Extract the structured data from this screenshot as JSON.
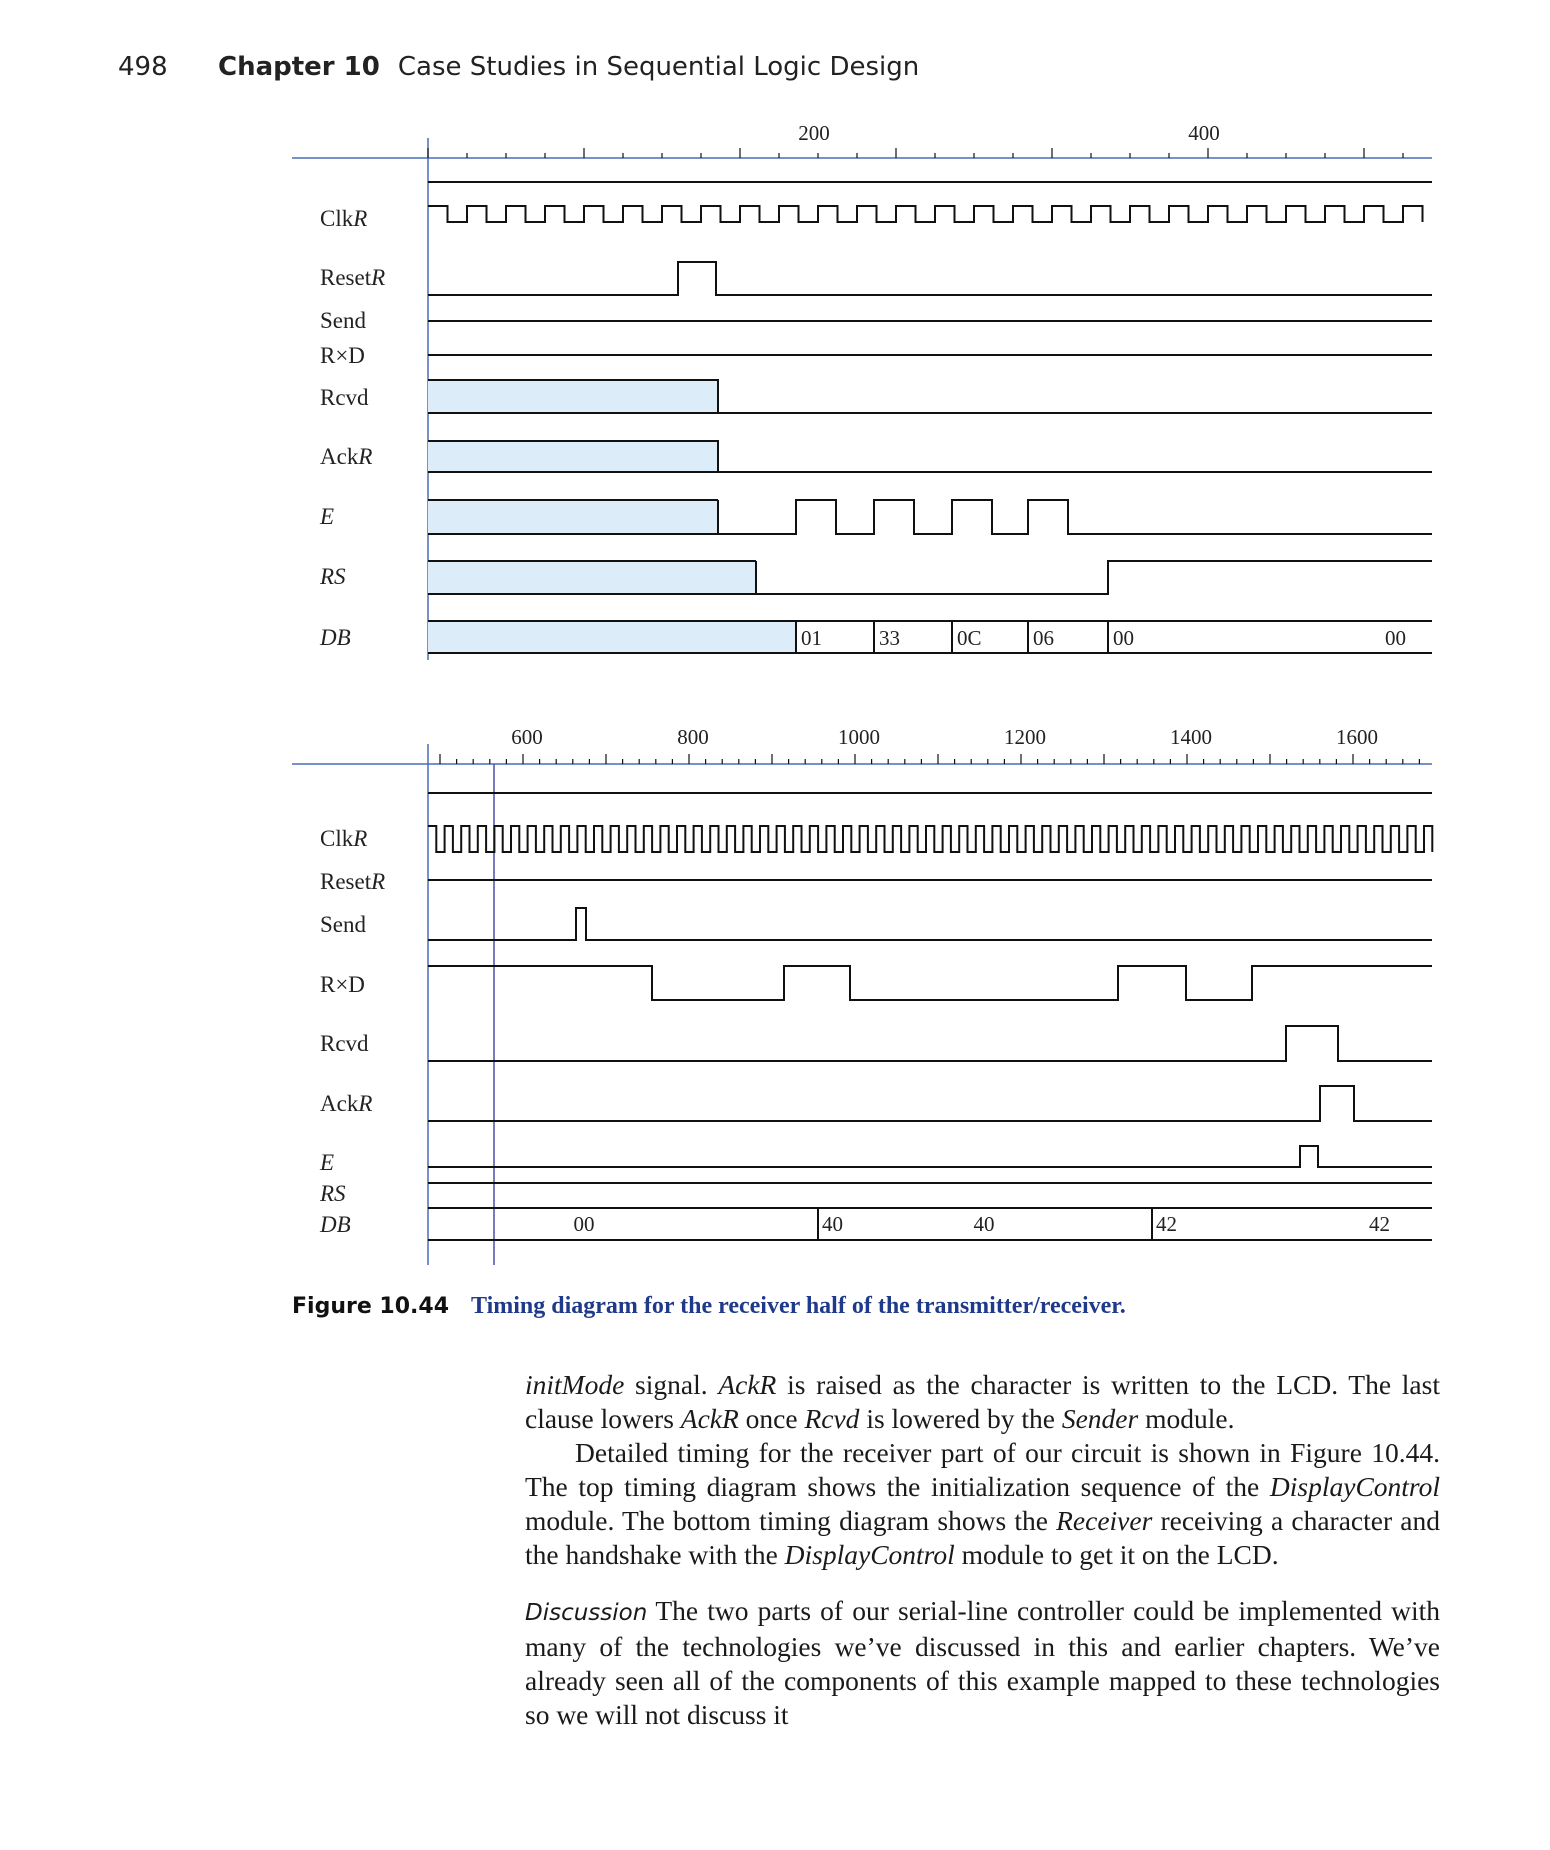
{
  "header": {
    "page_number": "498",
    "chapter": "Chapter 10",
    "title": "Case Studies in Sequential Logic Design"
  },
  "colors": {
    "shade": "#dcecf8",
    "axis_blue": "#4a6fb5",
    "caption_blue": "#1f3a8a",
    "trace": "#111111"
  },
  "diagram_top": {
    "tick_labels": [
      "200",
      "400"
    ],
    "signals": [
      {
        "name": "Clk",
        "suffix": "R",
        "italic": false
      },
      {
        "name": "Reset",
        "suffix": "R",
        "italic": false
      },
      {
        "name": "Send",
        "suffix": "",
        "italic": false
      },
      {
        "name": "R×D",
        "suffix": "",
        "italic": false
      },
      {
        "name": "Rcvd",
        "suffix": "",
        "italic": false
      },
      {
        "name": "Ack",
        "suffix": "R",
        "italic": false
      },
      {
        "name": "E",
        "suffix": "",
        "italic": true
      },
      {
        "name": "RS",
        "suffix": "",
        "italic": true
      },
      {
        "name": "DB",
        "suffix": "",
        "italic": true
      }
    ],
    "db_values": [
      "01",
      "33",
      "0C",
      "06",
      "00",
      "00"
    ]
  },
  "diagram_bottom": {
    "tick_labels": [
      "600",
      "800",
      "1000",
      "1200",
      "1400",
      "1600"
    ],
    "signals": [
      {
        "name": "Clk",
        "suffix": "R",
        "italic": false
      },
      {
        "name": "Reset",
        "suffix": "R",
        "italic": false
      },
      {
        "name": "Send",
        "suffix": "",
        "italic": false
      },
      {
        "name": "R×D",
        "suffix": "",
        "italic": false
      },
      {
        "name": "Rcvd",
        "suffix": "",
        "italic": false
      },
      {
        "name": "Ack",
        "suffix": "R",
        "italic": false
      },
      {
        "name": "E",
        "suffix": "",
        "italic": true
      },
      {
        "name": "RS",
        "suffix": "",
        "italic": true
      },
      {
        "name": "DB",
        "suffix": "",
        "italic": true
      }
    ],
    "db_values": [
      "00",
      "40",
      "40",
      "42",
      "42"
    ]
  },
  "caption": {
    "number": "Figure 10.44",
    "text": "Timing diagram for the receiver half of the transmitter/receiver."
  },
  "body": {
    "p1_a": "initMode",
    "p1_b": " signal. ",
    "p1_c": "AckR",
    "p1_d": " is raised as the character is written to the LCD. The last clause lowers ",
    "p1_e": "AckR",
    "p1_f": " once ",
    "p1_g": "Rcvd",
    "p1_h": " is lowered by the ",
    "p1_i": "Sender",
    "p1_j": " module.",
    "p2_a": "Detailed timing for the receiver part of our circuit is shown in Figure 10.44. The top timing diagram shows the initialization sequence of the ",
    "p2_b": "DisplayControl",
    "p2_c": " module. The bottom timing diagram shows the ",
    "p2_d": "Receiver",
    "p2_e": " receiving a character and the handshake with the ",
    "p2_f": "DisplayControl",
    "p2_g": " module to get it on the LCD.",
    "p3_head": "Discussion",
    "p3_text": "The two parts of our serial-line controller could be implemented with many of the technologies we’ve discussed in this and earlier chapters. We’ve already seen all of the components of this example mapped to these technologies so we will not discuss it"
  }
}
